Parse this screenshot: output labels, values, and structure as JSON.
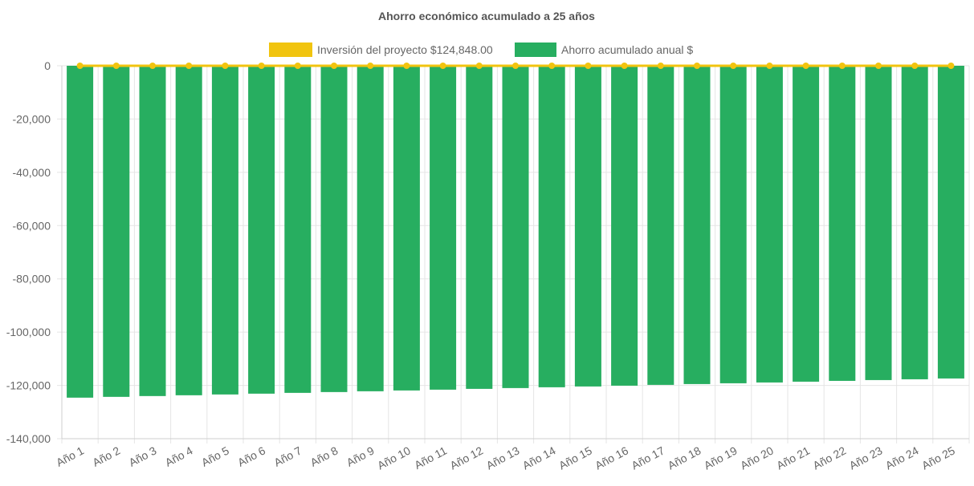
{
  "chart_data": {
    "type": "bar",
    "title": "Ahorro económico acumulado a 25 años",
    "categories": [
      "Año 1",
      "Año 2",
      "Año 3",
      "Año 4",
      "Año 5",
      "Año 6",
      "Año 7",
      "Año 8",
      "Año 9",
      "Año 10",
      "Año 11",
      "Año 12",
      "Año 13",
      "Año 14",
      "Año 15",
      "Año 16",
      "Año 17",
      "Año 18",
      "Año 19",
      "Año 20",
      "Año 21",
      "Año 22",
      "Año 23",
      "Año 24",
      "Año 25"
    ],
    "series": [
      {
        "name": "Inversión del proyecto $124,848.00",
        "kind": "line",
        "color": "#f1c40f",
        "values": [
          0,
          0,
          0,
          0,
          0,
          0,
          0,
          0,
          0,
          0,
          0,
          0,
          0,
          0,
          0,
          0,
          0,
          0,
          0,
          0,
          0,
          0,
          0,
          0,
          0
        ]
      },
      {
        "name": "Ahorro acumulado anual $",
        "kind": "bar",
        "color": "#27ae60",
        "values": [
          -124600,
          -124300,
          -124000,
          -123700,
          -123400,
          -123100,
          -122800,
          -122500,
          -122200,
          -121900,
          -121600,
          -121300,
          -121000,
          -120700,
          -120400,
          -120100,
          -119800,
          -119500,
          -119200,
          -118900,
          -118600,
          -118300,
          -118000,
          -117700,
          -117400
        ]
      }
    ],
    "ylim": [
      -140000,
      0
    ],
    "yticks": [
      0,
      -20000,
      -40000,
      -60000,
      -80000,
      -100000,
      -120000,
      -140000
    ],
    "ytick_labels": [
      "0",
      "-20,000",
      "-40,000",
      "-60,000",
      "-80,000",
      "-100,000",
      "-120,000",
      "-140,000"
    ],
    "grid": true,
    "legend_position": "top"
  }
}
